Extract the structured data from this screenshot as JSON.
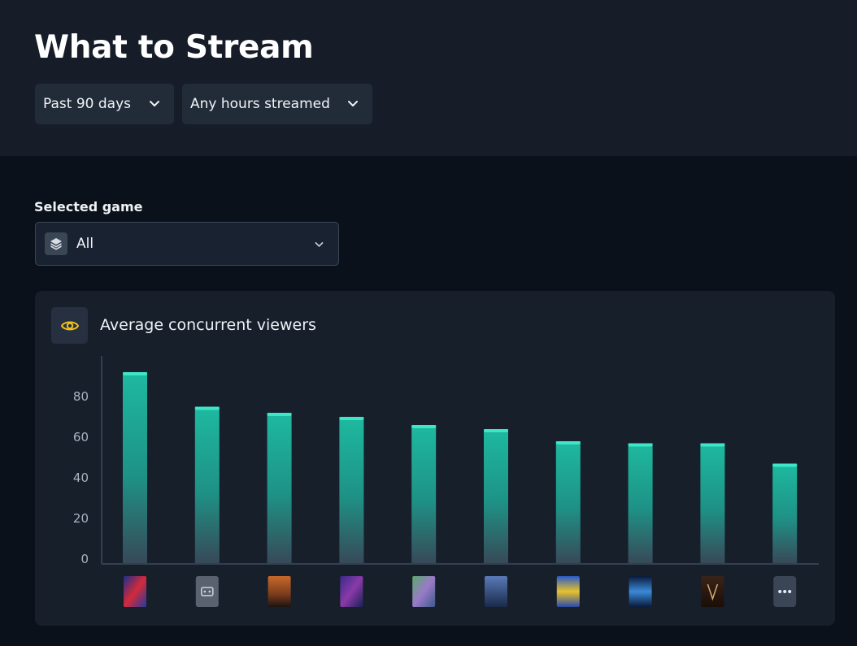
{
  "page": {
    "title": "What to Stream"
  },
  "filters": [
    {
      "label": "Past 90 days",
      "icon": "chevron-down-icon"
    },
    {
      "label": "Any hours streamed",
      "icon": "chevron-down-icon"
    }
  ],
  "game_selector": {
    "label": "Selected game",
    "value": "All",
    "icon": "layers-stack-icon"
  },
  "card": {
    "title": "Average concurrent viewers",
    "icon": "eye-icon",
    "icon_color": "#f2c21b"
  },
  "colors": {
    "bar_top": "#1fc7aa",
    "bar_bottom": "#3a4d5c",
    "header_bg": "#161d29",
    "page_bg": "#0b111b",
    "card_bg": "#171f2b"
  },
  "chart_data": {
    "type": "bar",
    "title": "Average concurrent viewers",
    "xlabel": "",
    "ylabel": "",
    "ylim": [
      0,
      100
    ],
    "yticks": [
      0,
      20,
      40,
      60,
      80
    ],
    "grid": false,
    "categories_icons": [
      "game-cover-1",
      "game-cover-2",
      "game-cover-3",
      "game-cover-4",
      "game-cover-5",
      "game-cover-6",
      "game-cover-7",
      "game-cover-8",
      "game-cover-9",
      "more-icon"
    ],
    "values": [
      92,
      75,
      72,
      70,
      66,
      64,
      58,
      57,
      57,
      47
    ]
  }
}
